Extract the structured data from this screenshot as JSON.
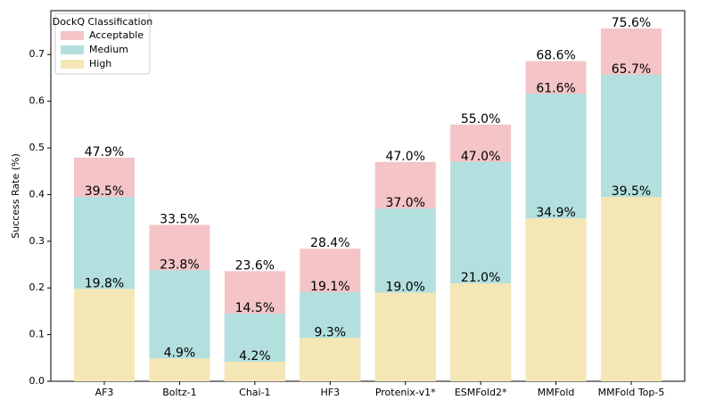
{
  "chart_data": {
    "type": "bar",
    "ylabel": "Success Rate (%)",
    "categories": [
      "AF3",
      "Boltz-1",
      "Chai-1",
      "HF3",
      "Protenix-v1*",
      "ESMFold2*",
      "MMFold",
      "MMFold Top-5"
    ],
    "series": [
      {
        "name": "Acceptable",
        "color": "#f4c4c6",
        "values": [
          0.479,
          0.335,
          0.236,
          0.284,
          0.47,
          0.55,
          0.686,
          0.756
        ],
        "value_labels": [
          "47.9%",
          "33.5%",
          "23.6%",
          "28.4%",
          "47.0%",
          "55.0%",
          "68.6%",
          "75.6%"
        ]
      },
      {
        "name": "Medium",
        "color": "#b3dfdf",
        "values": [
          0.395,
          0.238,
          0.145,
          0.191,
          0.37,
          0.47,
          0.616,
          0.657
        ],
        "value_labels": [
          "39.5%",
          "23.8%",
          "14.5%",
          "19.1%",
          "37.0%",
          "47.0%",
          "61.6%",
          "65.7%"
        ]
      },
      {
        "name": "High",
        "color": "#f5e7b5",
        "values": [
          0.198,
          0.049,
          0.042,
          0.093,
          0.19,
          0.21,
          0.349,
          0.395
        ],
        "value_labels": [
          "19.8%",
          "4.9%",
          "4.2%",
          "9.3%",
          "19.0%",
          "21.0%",
          "34.9%",
          "39.5%"
        ]
      }
    ],
    "legend_title": "DockQ Classification",
    "legend": "upper left",
    "ylim": [
      0,
      0.794
    ],
    "yticks": [
      {
        "value": 0,
        "label": "0.0"
      },
      0.1,
      0.2,
      0.3,
      0.4,
      0.5,
      0.6,
      0.7
    ]
  }
}
